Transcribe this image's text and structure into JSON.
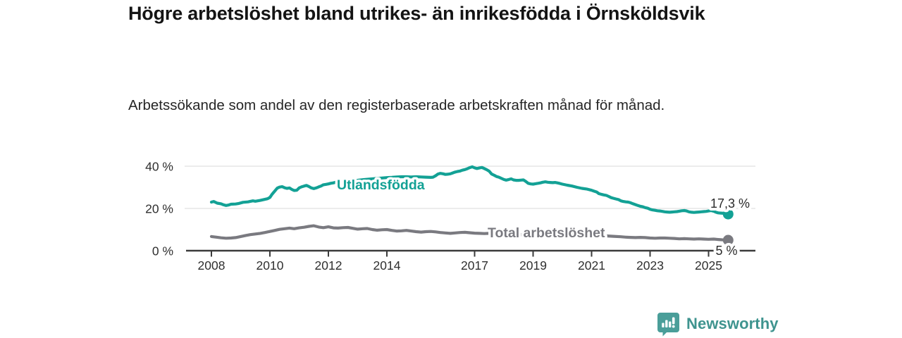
{
  "chart_data": {
    "type": "line",
    "title": "Högre arbetslöshet bland utrikes- än inrikesfödda i Örnsköldsvik",
    "subtitle": "Arbetssökande som andel av den registerbaserade arbetskraften månad för månad.",
    "legend_position": "inline",
    "grid": true,
    "x_axis": {
      "tick_years": [
        2008,
        2010,
        2012,
        2014,
        2017,
        2019,
        2021,
        2023,
        2025
      ],
      "range": [
        2008,
        2025.67
      ]
    },
    "y_axis": {
      "unit": "%",
      "range": [
        0,
        42
      ],
      "ticks": [
        {
          "value": 0,
          "label": "0 %"
        },
        {
          "value": 20,
          "label": "20 %"
        },
        {
          "value": 40,
          "label": "40 %"
        }
      ]
    },
    "series": [
      {
        "name": "Utlandsfödda",
        "color": "#13a195",
        "end_value": 17.3,
        "end_label": "17,3 %",
        "points": [
          [
            2008.0,
            23.0
          ],
          [
            2008.08,
            23.3
          ],
          [
            2008.2,
            22.5
          ],
          [
            2008.33,
            22.2
          ],
          [
            2008.42,
            21.7
          ],
          [
            2008.5,
            21.4
          ],
          [
            2008.58,
            21.6
          ],
          [
            2008.67,
            22.0
          ],
          [
            2008.83,
            22.1
          ],
          [
            2008.92,
            22.3
          ],
          [
            2009.08,
            22.9
          ],
          [
            2009.25,
            23.1
          ],
          [
            2009.42,
            23.6
          ],
          [
            2009.5,
            23.4
          ],
          [
            2009.67,
            23.8
          ],
          [
            2009.83,
            24.3
          ],
          [
            2009.92,
            24.6
          ],
          [
            2010.0,
            25.2
          ],
          [
            2010.08,
            26.8
          ],
          [
            2010.17,
            28.3
          ],
          [
            2010.25,
            29.6
          ],
          [
            2010.33,
            30.1
          ],
          [
            2010.42,
            30.3
          ],
          [
            2010.5,
            29.8
          ],
          [
            2010.58,
            29.5
          ],
          [
            2010.67,
            29.7
          ],
          [
            2010.75,
            29.0
          ],
          [
            2010.83,
            28.5
          ],
          [
            2010.92,
            28.6
          ],
          [
            2011.0,
            29.7
          ],
          [
            2011.08,
            30.2
          ],
          [
            2011.17,
            30.6
          ],
          [
            2011.25,
            30.9
          ],
          [
            2011.33,
            30.4
          ],
          [
            2011.42,
            29.7
          ],
          [
            2011.5,
            29.4
          ],
          [
            2011.58,
            29.7
          ],
          [
            2011.67,
            30.2
          ],
          [
            2011.75,
            30.6
          ],
          [
            2011.83,
            31.2
          ],
          [
            2011.92,
            31.4
          ],
          [
            2012.0,
            31.6
          ],
          [
            2012.08,
            31.9
          ],
          [
            2012.17,
            32.1
          ],
          [
            2012.25,
            32.4
          ],
          [
            2012.33,
            32.2
          ],
          [
            2012.5,
            32.7
          ],
          [
            2012.67,
            32.9
          ],
          [
            2012.83,
            33.1
          ],
          [
            2013.0,
            33.3
          ],
          [
            2013.17,
            33.6
          ],
          [
            2013.33,
            33.8
          ],
          [
            2013.5,
            34.0
          ],
          [
            2013.67,
            34.2
          ],
          [
            2013.83,
            34.4
          ],
          [
            2014.0,
            34.6
          ],
          [
            2014.17,
            34.7
          ],
          [
            2014.33,
            34.9
          ],
          [
            2014.5,
            35.0
          ],
          [
            2014.67,
            35.0
          ],
          [
            2014.83,
            34.9
          ],
          [
            2015.0,
            35.0
          ],
          [
            2015.17,
            34.9
          ],
          [
            2015.33,
            34.8
          ],
          [
            2015.5,
            34.7
          ],
          [
            2015.58,
            34.8
          ],
          [
            2015.67,
            35.5
          ],
          [
            2015.75,
            36.3
          ],
          [
            2015.83,
            36.6
          ],
          [
            2015.92,
            36.4
          ],
          [
            2016.0,
            36.1
          ],
          [
            2016.08,
            36.2
          ],
          [
            2016.17,
            36.4
          ],
          [
            2016.25,
            36.8
          ],
          [
            2016.33,
            37.2
          ],
          [
            2016.42,
            37.5
          ],
          [
            2016.5,
            37.7
          ],
          [
            2016.58,
            38.1
          ],
          [
            2016.67,
            38.4
          ],
          [
            2016.75,
            38.8
          ],
          [
            2016.83,
            39.3
          ],
          [
            2016.92,
            39.7
          ],
          [
            2017.0,
            39.2
          ],
          [
            2017.08,
            38.9
          ],
          [
            2017.17,
            39.2
          ],
          [
            2017.25,
            39.4
          ],
          [
            2017.33,
            38.9
          ],
          [
            2017.42,
            38.3
          ],
          [
            2017.5,
            37.6
          ],
          [
            2017.58,
            36.3
          ],
          [
            2017.67,
            35.7
          ],
          [
            2017.75,
            35.1
          ],
          [
            2017.83,
            34.8
          ],
          [
            2017.92,
            34.2
          ],
          [
            2018.0,
            33.7
          ],
          [
            2018.08,
            33.4
          ],
          [
            2018.17,
            33.7
          ],
          [
            2018.25,
            34.0
          ],
          [
            2018.33,
            33.5
          ],
          [
            2018.42,
            33.3
          ],
          [
            2018.5,
            33.3
          ],
          [
            2018.58,
            33.4
          ],
          [
            2018.67,
            33.5
          ],
          [
            2018.75,
            32.8
          ],
          [
            2018.83,
            31.9
          ],
          [
            2018.92,
            31.6
          ],
          [
            2019.0,
            31.5
          ],
          [
            2019.08,
            31.7
          ],
          [
            2019.17,
            31.9
          ],
          [
            2019.25,
            32.1
          ],
          [
            2019.33,
            32.4
          ],
          [
            2019.42,
            32.6
          ],
          [
            2019.5,
            32.4
          ],
          [
            2019.58,
            32.3
          ],
          [
            2019.67,
            32.2
          ],
          [
            2019.75,
            32.3
          ],
          [
            2019.83,
            32.1
          ],
          [
            2019.92,
            31.8
          ],
          [
            2020.0,
            31.5
          ],
          [
            2020.17,
            31.0
          ],
          [
            2020.33,
            30.6
          ],
          [
            2020.5,
            30.0
          ],
          [
            2020.67,
            29.5
          ],
          [
            2020.83,
            29.2
          ],
          [
            2021.0,
            28.6
          ],
          [
            2021.08,
            28.2
          ],
          [
            2021.17,
            27.8
          ],
          [
            2021.25,
            27.0
          ],
          [
            2021.33,
            26.7
          ],
          [
            2021.42,
            26.4
          ],
          [
            2021.5,
            26.2
          ],
          [
            2021.58,
            25.7
          ],
          [
            2021.67,
            25.1
          ],
          [
            2021.75,
            24.8
          ],
          [
            2021.83,
            24.5
          ],
          [
            2021.92,
            24.2
          ],
          [
            2022.0,
            23.6
          ],
          [
            2022.08,
            23.3
          ],
          [
            2022.17,
            23.1
          ],
          [
            2022.25,
            23.0
          ],
          [
            2022.33,
            22.7
          ],
          [
            2022.42,
            22.2
          ],
          [
            2022.5,
            21.8
          ],
          [
            2022.58,
            21.4
          ],
          [
            2022.67,
            21.0
          ],
          [
            2022.75,
            20.8
          ],
          [
            2022.83,
            20.4
          ],
          [
            2022.92,
            20.1
          ],
          [
            2023.0,
            19.6
          ],
          [
            2023.08,
            19.3
          ],
          [
            2023.17,
            19.1
          ],
          [
            2023.25,
            18.9
          ],
          [
            2023.33,
            18.8
          ],
          [
            2023.42,
            18.6
          ],
          [
            2023.5,
            18.4
          ],
          [
            2023.58,
            18.3
          ],
          [
            2023.67,
            18.2
          ],
          [
            2023.75,
            18.3
          ],
          [
            2023.83,
            18.4
          ],
          [
            2023.92,
            18.5
          ],
          [
            2024.0,
            18.7
          ],
          [
            2024.08,
            18.9
          ],
          [
            2024.17,
            19.0
          ],
          [
            2024.25,
            18.8
          ],
          [
            2024.33,
            18.4
          ],
          [
            2024.42,
            18.2
          ],
          [
            2024.5,
            18.1
          ],
          [
            2024.58,
            18.2
          ],
          [
            2024.67,
            18.3
          ],
          [
            2024.75,
            18.4
          ],
          [
            2024.83,
            18.5
          ],
          [
            2024.92,
            18.6
          ],
          [
            2025.0,
            18.8
          ],
          [
            2025.08,
            19.0
          ],
          [
            2025.17,
            18.7
          ],
          [
            2025.25,
            18.2
          ],
          [
            2025.33,
            17.9
          ],
          [
            2025.42,
            17.8
          ],
          [
            2025.5,
            17.7
          ],
          [
            2025.58,
            17.5
          ],
          [
            2025.67,
            17.3
          ]
        ]
      },
      {
        "name": "Total arbetslöshet",
        "color": "#7a7a80",
        "end_value": 5.0,
        "end_label": "5 %",
        "points": [
          [
            2008.0,
            6.7
          ],
          [
            2008.17,
            6.4
          ],
          [
            2008.33,
            6.1
          ],
          [
            2008.5,
            5.9
          ],
          [
            2008.67,
            6.0
          ],
          [
            2008.83,
            6.2
          ],
          [
            2009.0,
            6.7
          ],
          [
            2009.17,
            7.2
          ],
          [
            2009.33,
            7.6
          ],
          [
            2009.5,
            7.9
          ],
          [
            2009.67,
            8.2
          ],
          [
            2009.83,
            8.6
          ],
          [
            2010.0,
            9.1
          ],
          [
            2010.17,
            9.6
          ],
          [
            2010.33,
            10.1
          ],
          [
            2010.5,
            10.4
          ],
          [
            2010.67,
            10.7
          ],
          [
            2010.83,
            10.4
          ],
          [
            2011.0,
            10.8
          ],
          [
            2011.17,
            11.1
          ],
          [
            2011.33,
            11.5
          ],
          [
            2011.5,
            11.8
          ],
          [
            2011.67,
            11.2
          ],
          [
            2011.83,
            10.9
          ],
          [
            2012.0,
            11.3
          ],
          [
            2012.17,
            10.8
          ],
          [
            2012.33,
            10.7
          ],
          [
            2012.5,
            10.9
          ],
          [
            2012.67,
            11.0
          ],
          [
            2012.83,
            10.6
          ],
          [
            2013.0,
            10.2
          ],
          [
            2013.17,
            10.4
          ],
          [
            2013.33,
            10.5
          ],
          [
            2013.5,
            10.0
          ],
          [
            2013.67,
            9.7
          ],
          [
            2013.83,
            9.9
          ],
          [
            2014.0,
            10.0
          ],
          [
            2014.17,
            9.6
          ],
          [
            2014.33,
            9.3
          ],
          [
            2014.5,
            9.4
          ],
          [
            2014.67,
            9.6
          ],
          [
            2014.83,
            9.3
          ],
          [
            2015.0,
            9.0
          ],
          [
            2015.17,
            8.8
          ],
          [
            2015.33,
            9.0
          ],
          [
            2015.5,
            9.1
          ],
          [
            2015.67,
            8.9
          ],
          [
            2015.83,
            8.6
          ],
          [
            2016.0,
            8.4
          ],
          [
            2016.17,
            8.2
          ],
          [
            2016.33,
            8.4
          ],
          [
            2016.5,
            8.6
          ],
          [
            2016.67,
            8.7
          ],
          [
            2016.83,
            8.5
          ],
          [
            2017.0,
            8.3
          ],
          [
            2017.17,
            8.2
          ],
          [
            2017.33,
            8.1
          ],
          [
            2017.5,
            8.2
          ],
          [
            2017.67,
            8.3
          ],
          [
            2017.83,
            8.1
          ],
          [
            2018.0,
            7.9
          ],
          [
            2018.25,
            7.7
          ],
          [
            2018.5,
            7.6
          ],
          [
            2018.75,
            7.4
          ],
          [
            2019.0,
            7.3
          ],
          [
            2019.25,
            7.4
          ],
          [
            2019.5,
            7.3
          ],
          [
            2019.75,
            7.2
          ],
          [
            2020.0,
            7.5
          ],
          [
            2020.25,
            7.8
          ],
          [
            2020.5,
            7.7
          ],
          [
            2020.75,
            7.5
          ],
          [
            2021.0,
            7.3
          ],
          [
            2021.25,
            7.1
          ],
          [
            2021.5,
            7.0
          ],
          [
            2021.75,
            6.8
          ],
          [
            2022.0,
            6.6
          ],
          [
            2022.17,
            6.4
          ],
          [
            2022.33,
            6.3
          ],
          [
            2022.5,
            6.2
          ],
          [
            2022.67,
            6.3
          ],
          [
            2022.83,
            6.2
          ],
          [
            2023.0,
            6.0
          ],
          [
            2023.17,
            5.9
          ],
          [
            2023.33,
            6.0
          ],
          [
            2023.5,
            6.0
          ],
          [
            2023.67,
            5.9
          ],
          [
            2023.83,
            5.8
          ],
          [
            2024.0,
            5.6
          ],
          [
            2024.17,
            5.7
          ],
          [
            2024.33,
            5.6
          ],
          [
            2024.5,
            5.5
          ],
          [
            2024.67,
            5.6
          ],
          [
            2024.83,
            5.5
          ],
          [
            2025.0,
            5.4
          ],
          [
            2025.17,
            5.5
          ],
          [
            2025.33,
            5.3
          ],
          [
            2025.42,
            5.2
          ],
          [
            2025.5,
            5.1
          ],
          [
            2025.58,
            5.1
          ],
          [
            2025.67,
            5.0
          ]
        ]
      }
    ]
  },
  "footer": {
    "brand": "Newsworthy",
    "brand_color": "#3f948f",
    "icon_color": "#4a9e99"
  }
}
